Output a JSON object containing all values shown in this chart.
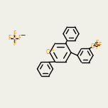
{
  "bg_color": "#f0f0e8",
  "bond_color": "#000000",
  "atom_colors": {
    "O": "#ff8c00",
    "F": "#ff8c00",
    "B": "#ff8c00",
    "C": "#000000"
  },
  "line_width": 1.0,
  "font_size": 5.5,
  "fig_size": [
    1.52,
    1.52
  ],
  "dpi": 100
}
